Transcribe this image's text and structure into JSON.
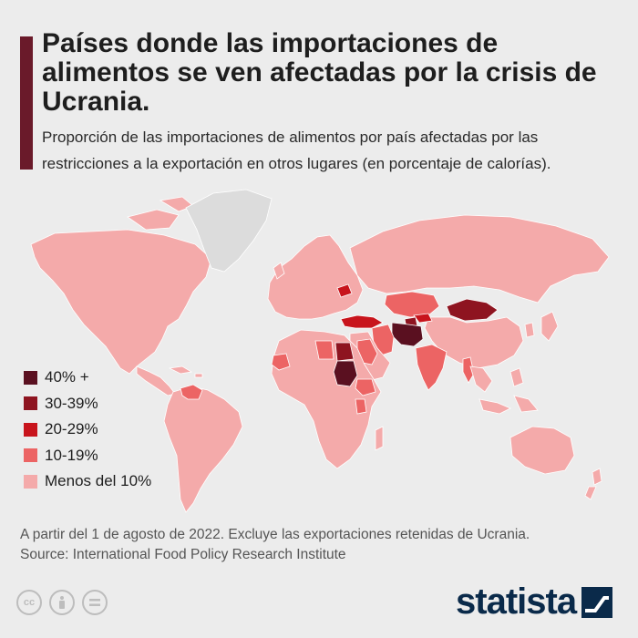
{
  "header": {
    "title": "Países donde las importaciones de alimentos se ven afectadas por la crisis de Ucrania.",
    "subtitle": "Proporción de las importaciones de alimentos por país afectadas por las restricciones a la exportación en otros lugares (en porcentaje de calorías)."
  },
  "legend": {
    "items": [
      {
        "label": "40% +",
        "color": "#5a1020"
      },
      {
        "label": "30-39%",
        "color": "#8e1420"
      },
      {
        "label": "20-29%",
        "color": "#c8141c"
      },
      {
        "label": "10-19%",
        "color": "#ec6464"
      },
      {
        "label": "Menos del 10%",
        "color": "#f4aaaa"
      }
    ]
  },
  "map": {
    "no_data_color": "#dcdcdc",
    "regions": [
      {
        "name": "Sudan",
        "category": "40% +"
      },
      {
        "name": "Afghanistan",
        "category": "40% +"
      },
      {
        "name": "Mongolia",
        "category": "30-39%"
      },
      {
        "name": "Egypt",
        "category": "30-39%"
      },
      {
        "name": "Tajikistan",
        "category": "30-39%"
      },
      {
        "name": "Turkey",
        "category": "20-29%"
      },
      {
        "name": "Belarus",
        "category": "20-29%"
      },
      {
        "name": "Kyrgyzstan",
        "category": "20-29%"
      },
      {
        "name": "Kazakhstan",
        "category": "10-19%"
      },
      {
        "name": "Iran",
        "category": "10-19%"
      },
      {
        "name": "India",
        "category": "10-19%"
      },
      {
        "name": "Myanmar",
        "category": "10-19%"
      },
      {
        "name": "Libya",
        "category": "10-19%"
      },
      {
        "name": "Saudi Arabia",
        "category": "10-19%"
      },
      {
        "name": "Mauritania",
        "category": "10-19%"
      },
      {
        "name": "Ethiopia",
        "category": "10-19%"
      },
      {
        "name": "Kenya",
        "category": "10-19%"
      },
      {
        "name": "Venezuela",
        "category": "10-19%"
      },
      {
        "name": "Greenland",
        "category": "no data"
      }
    ]
  },
  "footer": {
    "note": "A partir del 1 de agosto de 2022. Excluye las exportaciones retenidas de Ucrania.",
    "source": "Source: International Food Policy Research Institute",
    "brand": "statista",
    "license_icons": [
      "cc-icon",
      "attribution-icon",
      "no-derivatives-icon"
    ]
  }
}
